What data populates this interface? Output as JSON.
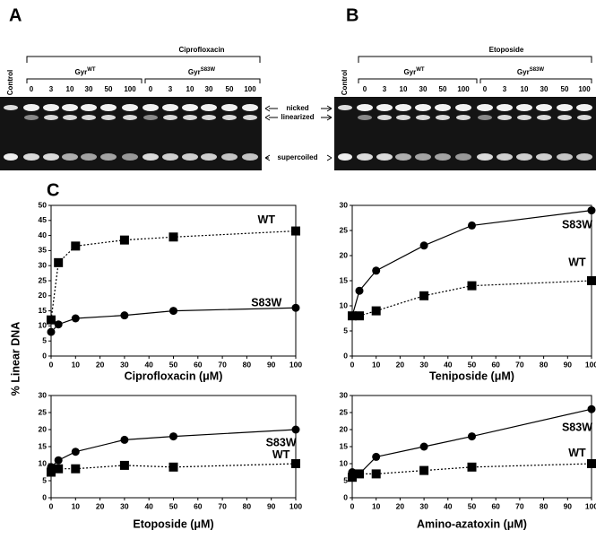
{
  "panels": {
    "a": "A",
    "b": "B",
    "c": "C"
  },
  "gels": [
    {
      "drug": "Ciprofloxacin",
      "control": "Control",
      "groups": [
        {
          "base": "Gyr",
          "sup": "WT",
          "lanes": [
            "0",
            "3",
            "10",
            "30",
            "50",
            "100"
          ]
        },
        {
          "base": "Gyr",
          "sup": "S83W",
          "lanes": [
            "0",
            "3",
            "10",
            "30",
            "50",
            "100"
          ]
        }
      ]
    },
    {
      "drug": "Etoposide",
      "control": "Control",
      "groups": [
        {
          "base": "Gyr",
          "sup": "WT",
          "lanes": [
            "0",
            "3",
            "10",
            "30",
            "50",
            "100"
          ]
        },
        {
          "base": "Gyr",
          "sup": "S83W",
          "lanes": [
            "0",
            "3",
            "10",
            "30",
            "50",
            "100"
          ]
        }
      ]
    }
  ],
  "band_labels": [
    "nicked",
    "linearized",
    "supercoiled"
  ],
  "y_label": "% Linear DNA",
  "chart_data": [
    {
      "type": "line",
      "x_label": "Ciprofloxacin (μM)",
      "x": [
        0,
        3,
        10,
        30,
        50,
        100
      ],
      "xlim": [
        0,
        100
      ],
      "xticks": [
        0,
        10,
        20,
        30,
        40,
        50,
        60,
        70,
        80,
        90,
        100
      ],
      "ylim": [
        0,
        50
      ],
      "yticks": [
        0,
        5,
        10,
        15,
        20,
        25,
        30,
        35,
        40,
        45,
        50
      ],
      "series": [
        {
          "name": "WT",
          "color": "#000000",
          "marker": "square",
          "linestyle": "dotted",
          "values": [
            12,
            31,
            36.5,
            38.5,
            39.5,
            41.5
          ]
        },
        {
          "name": "S83W",
          "color": "#000000",
          "marker": "circle",
          "linestyle": "solid",
          "values": [
            8,
            10.5,
            12.5,
            13.5,
            15,
            16
          ]
        }
      ]
    },
    {
      "type": "line",
      "x_label": "Teniposide (μM)",
      "x": [
        0,
        3,
        10,
        30,
        50,
        100
      ],
      "xlim": [
        0,
        100
      ],
      "xticks": [
        0,
        10,
        20,
        30,
        40,
        50,
        60,
        70,
        80,
        90,
        100
      ],
      "ylim": [
        0,
        30
      ],
      "yticks": [
        0,
        5,
        10,
        15,
        20,
        25,
        30
      ],
      "series": [
        {
          "name": "S83W",
          "color": "#000000",
          "marker": "circle",
          "linestyle": "solid",
          "values": [
            8,
            13,
            17,
            22,
            26,
            29
          ]
        },
        {
          "name": "WT",
          "color": "#000000",
          "marker": "square",
          "linestyle": "dotted",
          "values": [
            8,
            8,
            9,
            12,
            14,
            15
          ]
        }
      ]
    },
    {
      "type": "line",
      "x_label": "Etoposide (μM)",
      "x": [
        0,
        3,
        10,
        30,
        50,
        100
      ],
      "xlim": [
        0,
        100
      ],
      "xticks": [
        0,
        10,
        20,
        30,
        40,
        50,
        60,
        70,
        80,
        90,
        100
      ],
      "ylim": [
        0,
        30
      ],
      "yticks": [
        0,
        5,
        10,
        15,
        20,
        25,
        30
      ],
      "series": [
        {
          "name": "S83W",
          "color": "#000000",
          "marker": "circle",
          "linestyle": "solid",
          "values": [
            9,
            11,
            13.5,
            17,
            18,
            20
          ]
        },
        {
          "name": "WT",
          "color": "#000000",
          "marker": "square",
          "linestyle": "dotted",
          "values": [
            7.5,
            8.5,
            8.5,
            9.5,
            9,
            10
          ]
        }
      ]
    },
    {
      "type": "line",
      "x_label": "Amino-azatoxin (μM)",
      "x": [
        0,
        3,
        10,
        30,
        50,
        100
      ],
      "xlim": [
        0,
        100
      ],
      "xticks": [
        0,
        10,
        20,
        30,
        40,
        50,
        60,
        70,
        80,
        90,
        100
      ],
      "ylim": [
        0,
        30
      ],
      "yticks": [
        0,
        5,
        10,
        15,
        20,
        25,
        30
      ],
      "series": [
        {
          "name": "S83W",
          "color": "#000000",
          "marker": "circle",
          "linestyle": "solid",
          "values": [
            7.5,
            7,
            12,
            15,
            18,
            26
          ]
        },
        {
          "name": "WT",
          "color": "#000000",
          "marker": "square",
          "linestyle": "dotted",
          "values": [
            6,
            7,
            7,
            8,
            9,
            10
          ]
        }
      ]
    }
  ]
}
